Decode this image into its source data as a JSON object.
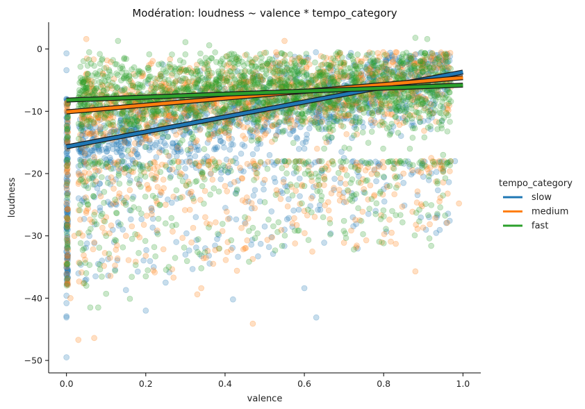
{
  "chart_data": {
    "type": "scatter",
    "title": "Modération: loudness ~ valence * tempo_category",
    "xlabel": "valence",
    "ylabel": "loudness",
    "xlim": [
      -0.045,
      1.045
    ],
    "ylim": [
      -52,
      4.3
    ],
    "xticks": [
      0.0,
      0.2,
      0.4,
      0.6,
      0.8,
      1.0
    ],
    "xtick_labels": [
      "0.0",
      "0.2",
      "0.4",
      "0.6",
      "0.8",
      "1.0"
    ],
    "yticks": [
      0,
      -10,
      -20,
      -30,
      -40,
      -50
    ],
    "ytick_labels": [
      "0",
      "−10",
      "−20",
      "−30",
      "−40",
      "−50"
    ],
    "grid": false,
    "legend": {
      "title": "tempo_category",
      "placement": "right"
    },
    "series": [
      {
        "name": "slow",
        "color": "#1f77b4",
        "regression": {
          "x": [
            0.0,
            1.0
          ],
          "y": [
            -15.7,
            -3.7
          ]
        },
        "points": [
          [
            0.0,
            -49.5
          ],
          [
            0.0,
            -43.1
          ],
          [
            0.0,
            -42.9
          ],
          [
            0.0,
            -40.8
          ],
          [
            0.0,
            -39.6
          ],
          [
            0.0,
            -36.2
          ],
          [
            0.0,
            -35.1
          ],
          [
            0.0,
            -32.5
          ],
          [
            0.0,
            -28.6
          ],
          [
            0.0,
            -25.0
          ],
          [
            0.0,
            -22.0
          ],
          [
            0.0,
            -18.0
          ],
          [
            0.0,
            -14.5
          ],
          [
            0.0,
            -11.0
          ],
          [
            0.0,
            -8.0
          ],
          [
            0.0,
            -3.4
          ],
          [
            0.0,
            -0.7
          ],
          [
            0.05,
            -37.0
          ],
          [
            0.08,
            -34.5
          ],
          [
            0.12,
            -31.0
          ],
          [
            0.15,
            -38.7
          ],
          [
            0.2,
            -42.0
          ],
          [
            0.22,
            -35.0
          ],
          [
            0.25,
            -37.5
          ],
          [
            0.3,
            -33.0
          ],
          [
            0.35,
            -32.0
          ],
          [
            0.38,
            -30.5
          ],
          [
            0.42,
            -40.2
          ],
          [
            0.45,
            -27.9
          ],
          [
            0.5,
            -28.5
          ],
          [
            0.55,
            -29.0
          ],
          [
            0.6,
            -38.4
          ],
          [
            0.63,
            -43.1
          ],
          [
            0.65,
            -31.1
          ],
          [
            0.7,
            -24.6
          ],
          [
            0.75,
            -23.0
          ],
          [
            0.8,
            -22.5
          ],
          [
            0.85,
            -21.5
          ],
          [
            0.9,
            -20.5
          ],
          [
            0.95,
            -19.5
          ],
          [
            0.98,
            -18.0
          ],
          [
            0.3,
            -20.5
          ],
          [
            0.5,
            -18.5
          ],
          [
            0.7,
            -17.5
          ],
          [
            0.6,
            -16.0
          ],
          [
            0.4,
            -19.0
          ]
        ]
      },
      {
        "name": "medium",
        "color": "#ff7f0e",
        "regression": {
          "x": [
            0.0,
            1.0
          ],
          "y": [
            -10.1,
            -4.6
          ]
        },
        "points": [
          [
            0.03,
            -46.7
          ],
          [
            0.07,
            -46.4
          ],
          [
            0.47,
            -44.1
          ],
          [
            0.88,
            -35.7
          ],
          [
            0.43,
            -35.6
          ],
          [
            0.82,
            -29.5
          ],
          [
            0.7,
            -31.1
          ],
          [
            0.33,
            -39.4
          ],
          [
            0.34,
            -38.4
          ],
          [
            0.27,
            -36.7
          ],
          [
            0.96,
            -27.9
          ],
          [
            0.99,
            -24.8
          ],
          [
            0.57,
            -28.0
          ],
          [
            0.45,
            -32.0
          ],
          [
            0.2,
            -33.2
          ],
          [
            0.15,
            -30.0
          ],
          [
            0.1,
            -27.0
          ],
          [
            0.05,
            -26.0
          ],
          [
            0.6,
            -26.0
          ],
          [
            0.75,
            -22.5
          ],
          [
            0.85,
            -20.0
          ],
          [
            0.9,
            -18.0
          ],
          [
            0.55,
            1.3
          ],
          [
            0.05,
            1.6
          ],
          [
            0.02,
            -30.0
          ],
          [
            0.01,
            -40.0
          ],
          [
            0.25,
            -25.0
          ],
          [
            0.35,
            -27.0
          ],
          [
            0.65,
            -20.5
          ],
          [
            0.8,
            -19.0
          ],
          [
            0.92,
            -17.5
          ],
          [
            0.4,
            -22.0
          ],
          [
            0.5,
            -21.0
          ]
        ]
      },
      {
        "name": "fast",
        "color": "#2ca02c",
        "regression": {
          "x": [
            0.0,
            1.0
          ],
          "y": [
            -8.2,
            -5.8
          ]
        },
        "points": [
          [
            0.08,
            -41.5
          ],
          [
            0.06,
            -41.5
          ],
          [
            0.1,
            -39.3
          ],
          [
            0.16,
            -40.1
          ],
          [
            0.2,
            -36.5
          ],
          [
            0.34,
            -35.2
          ],
          [
            0.92,
            -31.6
          ],
          [
            0.89,
            -25.8
          ],
          [
            0.78,
            -26.5
          ],
          [
            0.7,
            -27.6
          ],
          [
            0.72,
            -23.6
          ],
          [
            0.5,
            -24.6
          ],
          [
            0.45,
            -27.0
          ],
          [
            0.3,
            1.1
          ],
          [
            0.13,
            1.3
          ],
          [
            0.88,
            1.8
          ],
          [
            0.91,
            1.6
          ],
          [
            0.36,
            0.6
          ],
          [
            0.25,
            -28.0
          ],
          [
            0.1,
            -30.0
          ],
          [
            0.6,
            -22.0
          ],
          [
            0.8,
            -20.5
          ],
          [
            0.95,
            -17.0
          ],
          [
            0.4,
            -19.5
          ],
          [
            0.05,
            -38.0
          ],
          [
            0.15,
            -25.0
          ],
          [
            0.55,
            -18.0
          ],
          [
            0.65,
            -16.0
          ]
        ]
      }
    ],
    "dense_band": {
      "x_range": [
        0.03,
        0.97
      ],
      "y_range": [
        -18.0,
        -0.5
      ],
      "core_y_range": [
        -14.0,
        -2.0
      ]
    }
  }
}
